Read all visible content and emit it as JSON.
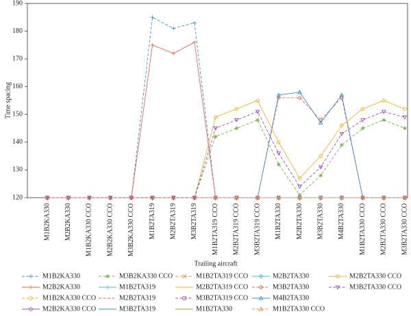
{
  "chart_data": {
    "type": "line",
    "x_label": "Trailing aircraft",
    "y_label": "Time spacing",
    "categories": [
      "M1B2KA330",
      "M2B2KA330",
      "M1B2KA330 CCO",
      "M2B2KA330 CCO",
      "M3B2KA330 CCO",
      "M1B2TA319",
      "M2B2TA319",
      "M3B2TA319",
      "M1B2TA319 CCO",
      "M2B2TA319 CCO",
      "M3B2TA319 CCO",
      "M1B2TA330",
      "M2B2TA330",
      "M3B2TA330",
      "M4B2TA330",
      "M1B2TA330 CCO",
      "M2B2TA330 CCO",
      "M3B2TA330 CCO"
    ],
    "ylim": [
      120,
      190
    ],
    "yticks": [
      120,
      130,
      140,
      150,
      160,
      170,
      180,
      190
    ],
    "legend": "bottom",
    "series": [
      {
        "name": "M1B2KA330",
        "color": "#3b8fd9",
        "dash": true,
        "marker": "+",
        "values": [
          120,
          120,
          120,
          120,
          120,
          185,
          181,
          183,
          120,
          120,
          120,
          120,
          120,
          120,
          120,
          120,
          120,
          120
        ]
      },
      {
        "name": "M2B2KA330",
        "color": "#e8694a",
        "dash": false,
        "marker": "+",
        "values": [
          120,
          120,
          120,
          120,
          120,
          175,
          172,
          176,
          120,
          120,
          120,
          120,
          120,
          120,
          120,
          120,
          120,
          120
        ]
      },
      {
        "name": "M1B2KA330 CCO",
        "color": "#f3b328",
        "dash": true,
        "marker": "o",
        "values": [
          120,
          120,
          120,
          120,
          120,
          120,
          120,
          120,
          120,
          120,
          120,
          120,
          120,
          120,
          120,
          120,
          120,
          120
        ]
      },
      {
        "name": "M2B2KA330 CCO",
        "color": "#9b4fc0",
        "dash": false,
        "marker": "o",
        "values": [
          120,
          120,
          120,
          120,
          120,
          120,
          120,
          120,
          120,
          120,
          120,
          120,
          120,
          120,
          120,
          120,
          120,
          120
        ]
      },
      {
        "name": "M3B2KA330 CCO",
        "color": "#77b341",
        "dash": true,
        "marker": "*",
        "values": [
          120,
          120,
          120,
          120,
          120,
          120,
          120,
          120,
          142,
          145,
          148,
          132,
          121,
          128,
          139,
          145,
          148,
          145
        ]
      },
      {
        "name": "M1B2TA319",
        "color": "#3fbfe6",
        "dash": false,
        "marker": "+",
        "values": [
          120,
          120,
          120,
          120,
          120,
          120,
          120,
          120,
          120,
          120,
          120,
          120,
          120,
          120,
          120,
          120,
          120,
          120
        ]
      },
      {
        "name": "M2B2TA319",
        "color": "#e8694a",
        "dash": true,
        "marker": "",
        "values": [
          120,
          120,
          120,
          120,
          120,
          120,
          120,
          120,
          120,
          120,
          120,
          120,
          120,
          120,
          120,
          120,
          120,
          120
        ]
      },
      {
        "name": "M3B2TA319",
        "color": "#3b8fd9",
        "dash": false,
        "marker": "",
        "values": [
          120,
          120,
          120,
          120,
          120,
          120,
          120,
          120,
          120,
          120,
          120,
          120,
          120,
          120,
          120,
          120,
          120,
          120
        ]
      },
      {
        "name": "M1B2TA319 CCO",
        "color": "#f08a3c",
        "dash": true,
        "marker": "x",
        "values": [
          120,
          120,
          120,
          120,
          120,
          120,
          120,
          120,
          120,
          120,
          120,
          120,
          120,
          120,
          120,
          120,
          120,
          120
        ]
      },
      {
        "name": "M2B2TA319 CCO",
        "color": "#f3b328",
        "dash": false,
        "marker": "",
        "values": [
          120,
          120,
          120,
          120,
          120,
          120,
          120,
          120,
          120,
          120,
          120,
          120,
          120,
          120,
          120,
          120,
          120,
          120
        ]
      },
      {
        "name": "M3B2TA319 CCO",
        "color": "#9b4fc0",
        "dash": true,
        "marker": "s",
        "values": [
          120,
          120,
          120,
          120,
          120,
          120,
          120,
          120,
          120,
          120,
          120,
          120,
          120,
          120,
          120,
          120,
          120,
          120
        ]
      },
      {
        "name": "M1B2TA330",
        "color": "#77b341",
        "dash": false,
        "marker": "",
        "values": [
          120,
          120,
          120,
          120,
          120,
          120,
          120,
          120,
          120,
          120,
          120,
          120,
          120,
          120,
          120,
          120,
          120,
          120
        ]
      },
      {
        "name": "M2B2TA330",
        "color": "#3fbfe6",
        "dash": false,
        "marker": "d",
        "values": [
          120,
          120,
          120,
          120,
          120,
          120,
          120,
          120,
          120,
          120,
          120,
          120,
          120,
          120,
          120,
          120,
          120,
          120
        ]
      },
      {
        "name": "M3B2TA330",
        "color": "#e8694a",
        "dash": true,
        "marker": "d",
        "values": [
          120,
          120,
          120,
          120,
          120,
          120,
          120,
          120,
          120,
          120,
          120,
          156,
          156,
          148,
          156,
          120,
          120,
          120
        ]
      },
      {
        "name": "M4B2TA330",
        "color": "#3b8fd9",
        "dash": false,
        "marker": "^",
        "values": [
          120,
          120,
          120,
          120,
          120,
          120,
          120,
          120,
          120,
          120,
          120,
          157,
          158,
          147,
          157,
          120,
          120,
          120
        ]
      },
      {
        "name": "M1B2TA330 CCO",
        "color": "#f08a3c",
        "dash": true,
        "marker": "^",
        "values": [
          120,
          120,
          120,
          120,
          120,
          120,
          120,
          120,
          120,
          120,
          120,
          120,
          120,
          120,
          120,
          120,
          120,
          120
        ]
      },
      {
        "name": "M2B2TA330 CCO",
        "color": "#f3b328",
        "dash": false,
        "marker": "o",
        "values": [
          120,
          120,
          120,
          120,
          120,
          120,
          120,
          120,
          149,
          152,
          155,
          140,
          127,
          135,
          146,
          152,
          155,
          152
        ]
      },
      {
        "name": "M3B2TA330 CCO",
        "color": "#9b4fc0",
        "dash": true,
        "marker": "v",
        "values": [
          120,
          120,
          120,
          120,
          120,
          120,
          120,
          120,
          145,
          148,
          151,
          136,
          124,
          131,
          143,
          148,
          151,
          149
        ]
      }
    ]
  }
}
